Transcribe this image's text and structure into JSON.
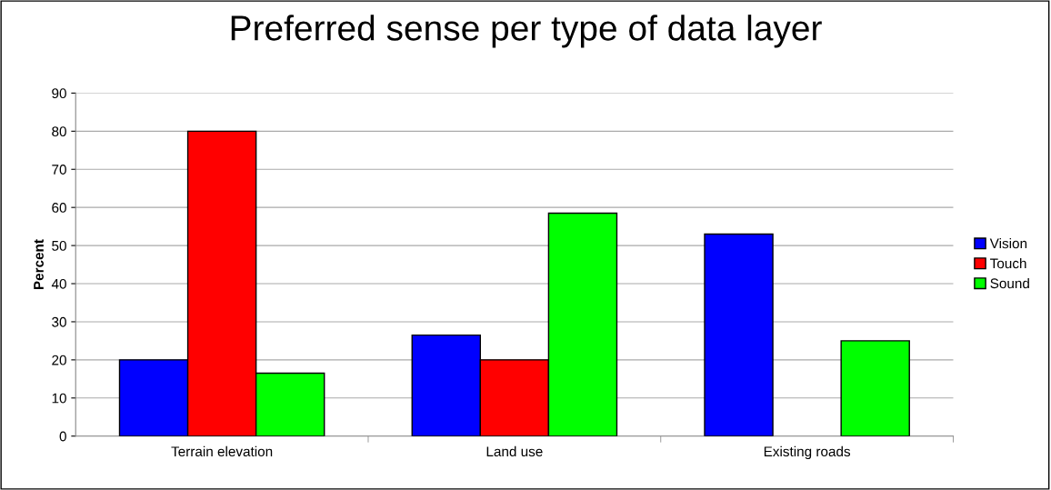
{
  "chart_data": {
    "type": "bar",
    "title": "Preferred sense per type of data layer",
    "ylabel": "Percent",
    "categories": [
      "Terrain elevation",
      "Land use",
      "Existing roads"
    ],
    "series": [
      {
        "name": "Vision",
        "color": "#0000ff",
        "values": [
          20,
          26.5,
          53
        ]
      },
      {
        "name": "Touch",
        "color": "#ff0000",
        "values": [
          80,
          20,
          null
        ]
      },
      {
        "name": "Sound",
        "color": "#00ff00",
        "values": [
          16.5,
          58.5,
          25
        ]
      }
    ],
    "ylim": [
      0,
      90
    ],
    "yticks": [
      0,
      10,
      20,
      30,
      40,
      50,
      60,
      70,
      80,
      90
    ],
    "grid": "y",
    "legend": "right"
  }
}
